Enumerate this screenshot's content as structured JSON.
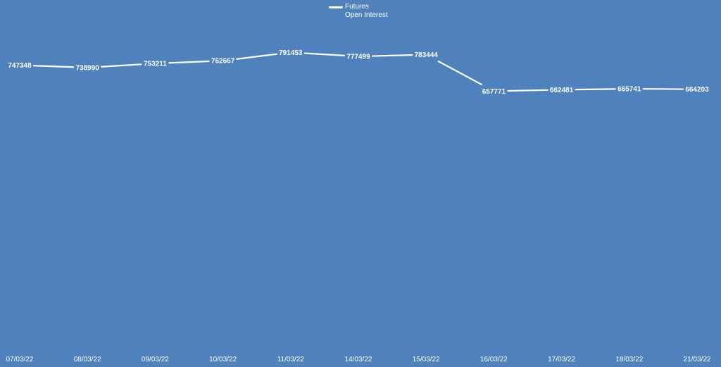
{
  "chart_data": {
    "type": "line",
    "categories": [
      "07/03/22",
      "08/03/22",
      "09/03/22",
      "10/03/22",
      "11/03/22",
      "14/03/22",
      "15/03/22",
      "16/03/22",
      "17/03/22",
      "18/03/22",
      "21/03/22"
    ],
    "series": [
      {
        "name": "Futures Open Interest",
        "values": [
          747348,
          738990,
          753211,
          762667,
          791453,
          777499,
          783444,
          657771,
          662481,
          665741,
          664203
        ]
      }
    ],
    "legend": {
      "position": "top-center",
      "line1": "Futures",
      "line2": "Open Interest"
    },
    "grid": false,
    "drop_lines": true,
    "data_labels": true,
    "colors": {
      "background": "#4f81bd",
      "line": "#ffffff",
      "text": "#ffffff"
    }
  }
}
